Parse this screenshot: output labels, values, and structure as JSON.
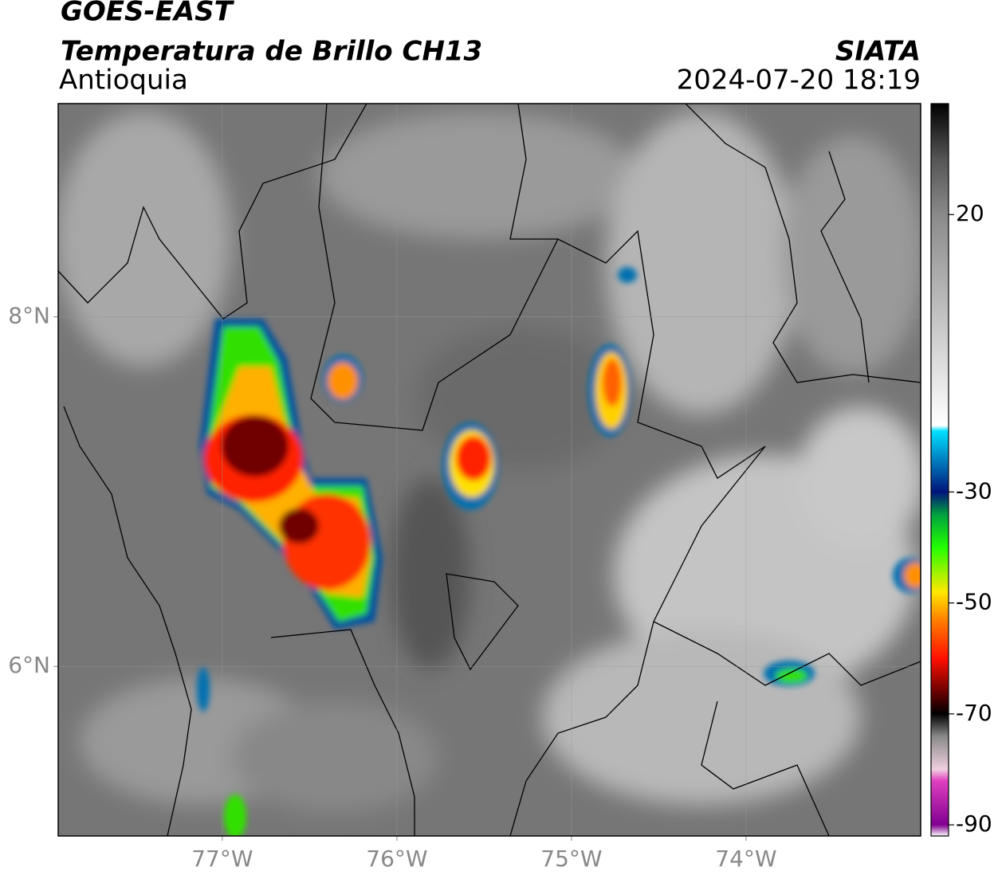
{
  "chart_data": {
    "type": "map",
    "title": "GOES-EAST",
    "subtitle": "Temperatura de Brillo CH13",
    "region": "Antioquia",
    "source": "SIATA",
    "timestamp": "2024-07-20 18:19",
    "xlim": [
      -77.94,
      -73.0
    ],
    "ylim": [
      5.03,
      9.22
    ],
    "xticks": [
      {
        "value": -77,
        "label": "77°W"
      },
      {
        "value": -76,
        "label": "76°W"
      },
      {
        "value": -75,
        "label": "75°W"
      },
      {
        "value": -74,
        "label": "74°W"
      }
    ],
    "yticks": [
      {
        "value": 6,
        "label": "6°N"
      },
      {
        "value": 8,
        "label": "8°N"
      }
    ],
    "grid": true,
    "colorbar": {
      "lim": [
        -92,
        40
      ],
      "ticks": [
        20,
        -30,
        -50,
        -70,
        -90
      ],
      "colormap": [
        {
          "value": 40,
          "color": "#000000"
        },
        {
          "value": 30,
          "color": "#555555"
        },
        {
          "value": 20,
          "color": "#8a8a8a"
        },
        {
          "value": -18,
          "color": "#ffffff"
        },
        {
          "value": -19,
          "color": "#00e0ff"
        },
        {
          "value": -30,
          "color": "#00137a"
        },
        {
          "value": -34,
          "color": "#00a040"
        },
        {
          "value": -40,
          "color": "#22ff00"
        },
        {
          "value": -48,
          "color": "#ffe800"
        },
        {
          "value": -53,
          "color": "#ff8000"
        },
        {
          "value": -60,
          "color": "#ff1000"
        },
        {
          "value": -66,
          "color": "#6a0000"
        },
        {
          "value": -70,
          "color": "#000000"
        },
        {
          "value": -74,
          "color": "#888888"
        },
        {
          "value": -80,
          "color": "#f0d0e0"
        },
        {
          "value": -82,
          "color": "#e040c0"
        },
        {
          "value": -90,
          "color": "#800090"
        },
        {
          "value": -92,
          "color": "#ffffff"
        }
      ]
    }
  }
}
